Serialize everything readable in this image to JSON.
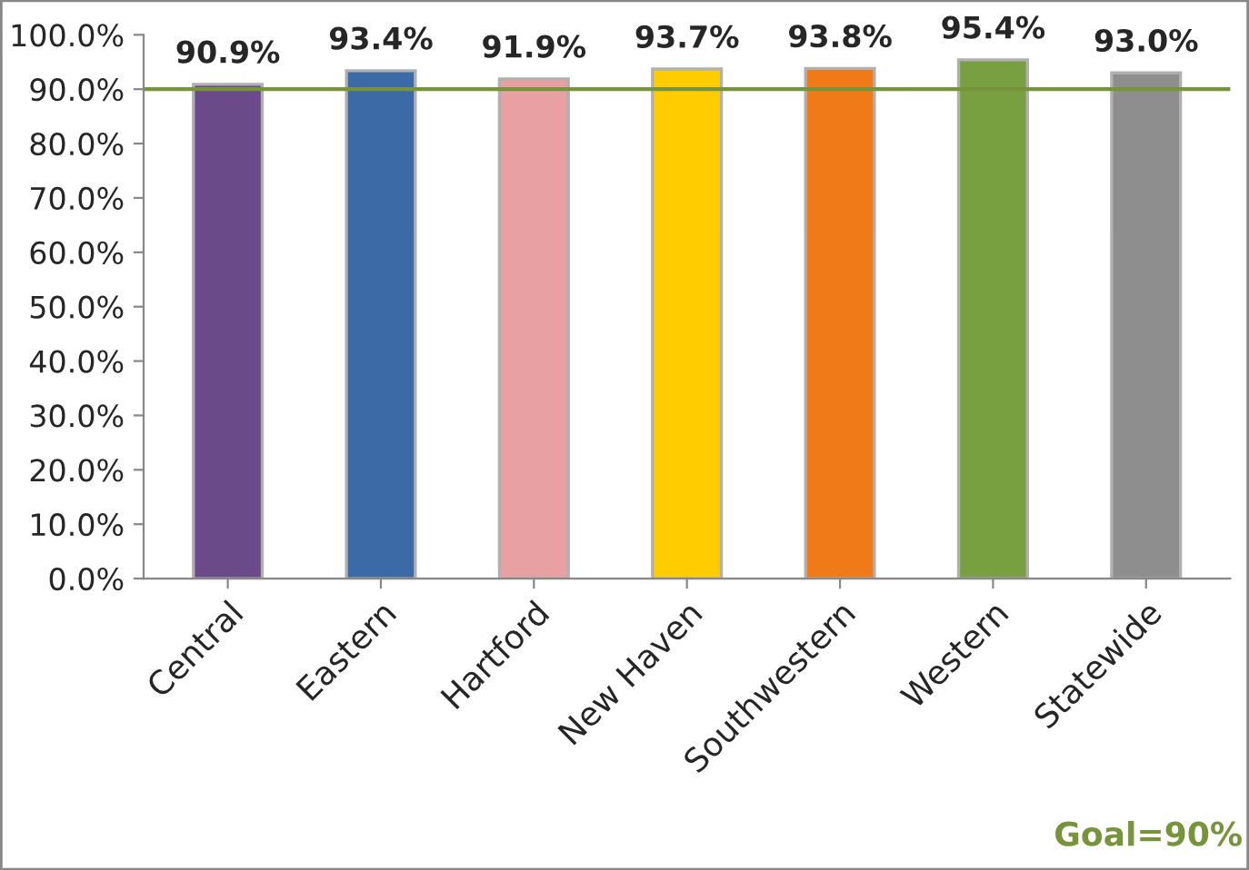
{
  "chart_data": {
    "type": "bar",
    "categories": [
      "Central",
      "Eastern",
      "Hartford",
      "New Haven",
      "Southwestern",
      "Western",
      "Statewide"
    ],
    "values": [
      90.9,
      93.4,
      91.9,
      93.7,
      93.8,
      95.4,
      93.0
    ],
    "colors": [
      "#6b4a8a",
      "#3b6aa6",
      "#e8a0a2",
      "#ffcc00",
      "#f07a18",
      "#78a040",
      "#8e8e8e"
    ],
    "value_labels": [
      "90.9%",
      "93.4%",
      "91.9%",
      "93.7%",
      "93.8%",
      "95.4%",
      "93.0%"
    ],
    "ylim": [
      0,
      100
    ],
    "yticks": [
      {
        "value": 0,
        "label": "0.0%"
      },
      {
        "value": 10,
        "label": "10.0%"
      },
      {
        "value": 20,
        "label": "20.0%"
      },
      {
        "value": 30,
        "label": "30.0%"
      },
      {
        "value": 40,
        "label": "40.0%"
      },
      {
        "value": 50,
        "label": "50.0%"
      },
      {
        "value": 60,
        "label": "60.0%"
      },
      {
        "value": 70,
        "label": "70.0%"
      },
      {
        "value": 80,
        "label": "80.0%"
      },
      {
        "value": 90,
        "label": "90.0%"
      },
      {
        "value": 100,
        "label": "100.0%"
      }
    ],
    "ref_lines": [
      {
        "axis": "y",
        "value": 90,
        "label": "Goal=90%",
        "color": "#77933c"
      }
    ],
    "grid": false,
    "legend": false
  }
}
